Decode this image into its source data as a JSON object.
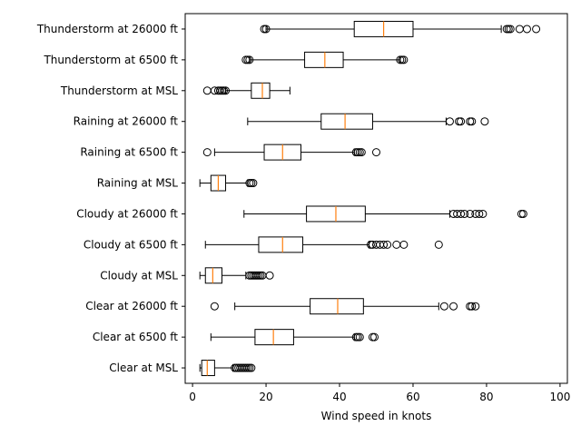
{
  "chart_data": {
    "type": "boxplot",
    "orientation": "horizontal",
    "xlabel": "Wind speed in knots",
    "ylabel": "",
    "xlim": [
      -2,
      102
    ],
    "xticks": [
      0,
      20,
      40,
      60,
      80,
      100
    ],
    "grid": false,
    "colors": {
      "box": "#000000",
      "median": "#ff7f0e",
      "flier": "#000000"
    },
    "categories": [
      "Thunderstorm at 26000 ft",
      "Thunderstorm at 6500 ft",
      "Thunderstorm at MSL",
      "Raining at 26000 ft",
      "Raining at 6500 ft",
      "Raining at MSL",
      "Cloudy at 26000 ft",
      "Cloudy at 6500 ft",
      "Cloudy at MSL",
      "Clear at 26000 ft",
      "Clear at 6500 ft",
      "Clear at MSL"
    ],
    "boxes": [
      {
        "whisker_low": 20,
        "q1": 44,
        "median": 52,
        "q3": 60,
        "whisker_high": 84,
        "fliers": [
          19.5,
          20,
          85.5,
          86,
          86.5,
          89,
          91,
          93.5
        ]
      },
      {
        "whisker_low": 15.5,
        "q1": 30.5,
        "median": 36,
        "q3": 41,
        "whisker_high": 56.5,
        "fliers": [
          14.5,
          15,
          15.5,
          56.5,
          57,
          57.5
        ]
      },
      {
        "whisker_low": 9,
        "q1": 16,
        "median": 19,
        "q3": 21,
        "whisker_high": 26.5,
        "fliers": [
          4,
          6,
          7,
          7.5,
          8,
          8.5,
          9
        ]
      },
      {
        "whisker_low": 15,
        "q1": 35,
        "median": 41.5,
        "q3": 49,
        "whisker_high": 69,
        "fliers": [
          70,
          72.5,
          73,
          75.5,
          76,
          79.5
        ]
      },
      {
        "whisker_low": 6,
        "q1": 19.5,
        "median": 24.5,
        "q3": 29.5,
        "whisker_high": 44,
        "fliers": [
          4,
          44.5,
          45,
          45.5,
          46,
          50
        ]
      },
      {
        "whisker_low": 2,
        "q1": 5,
        "median": 7,
        "q3": 9,
        "whisker_high": 15,
        "fliers": [
          15.5,
          16,
          16.5
        ]
      },
      {
        "whisker_low": 14,
        "q1": 31,
        "median": 39,
        "q3": 47,
        "whisker_high": 70,
        "fliers": [
          71,
          72,
          73,
          74,
          75.5,
          77,
          78,
          79,
          89.5,
          90
        ]
      },
      {
        "whisker_low": 3.5,
        "q1": 18,
        "median": 24.5,
        "q3": 30,
        "whisker_high": 48,
        "fliers": [
          48.5,
          49,
          50,
          51,
          52,
          53,
          55.5,
          57.5,
          67
        ]
      },
      {
        "whisker_low": 2,
        "q1": 3.5,
        "median": 5.5,
        "q3": 8,
        "whisker_high": 14.5,
        "fliers": [
          15.5,
          16,
          16.5,
          17,
          17.5,
          18,
          18.5,
          19,
          21
        ]
      },
      {
        "whisker_low": 11.5,
        "q1": 32,
        "median": 39.5,
        "q3": 46.5,
        "whisker_high": 67,
        "fliers": [
          6,
          68.5,
          71,
          75.5,
          76,
          77
        ]
      },
      {
        "whisker_low": 5,
        "q1": 17,
        "median": 22,
        "q3": 27.5,
        "whisker_high": 44,
        "fliers": [
          44.5,
          45,
          45.5,
          49,
          49.5
        ]
      },
      {
        "whisker_low": 2,
        "q1": 2.5,
        "median": 4,
        "q3": 6,
        "whisker_high": 11,
        "fliers": [
          11.5,
          12,
          12.5,
          13,
          13.5,
          14,
          14.5,
          15,
          15.5,
          16
        ]
      }
    ]
  }
}
